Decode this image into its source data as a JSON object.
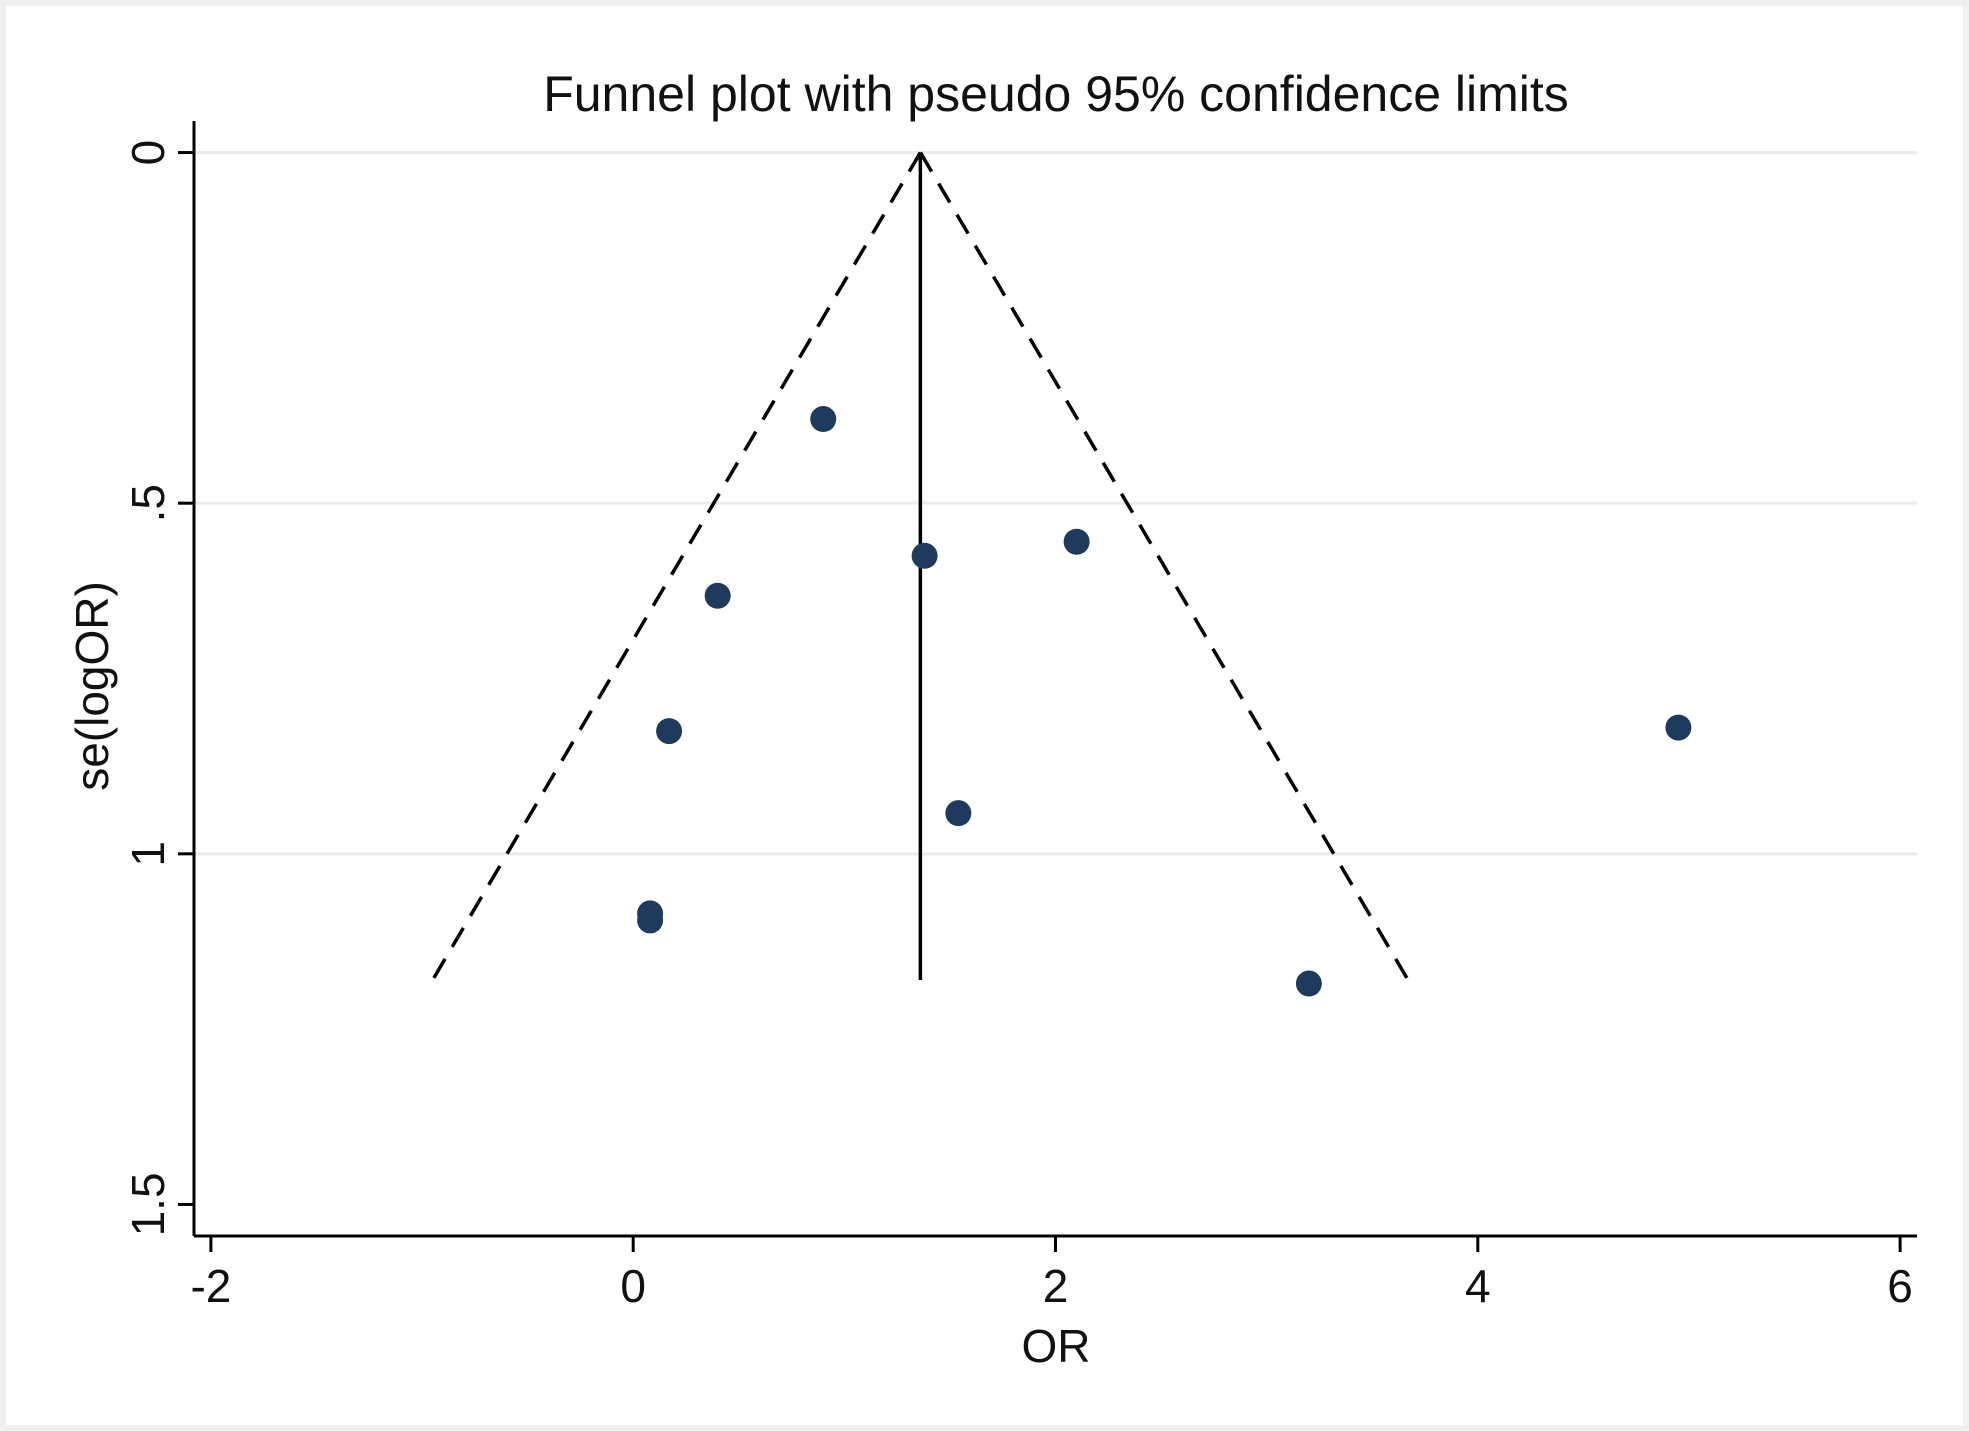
{
  "chart_data": {
    "type": "scatter",
    "title": "Funnel plot with pseudo 95% confidence limits",
    "xlabel": "OR",
    "ylabel": "se(logOR)",
    "xlim": [
      -2.08,
      6.08
    ],
    "ylim": [
      1.545,
      -0.045
    ],
    "y_reversed": true,
    "grid": true,
    "xticks": [
      {
        "value": -2,
        "label": "-2"
      },
      {
        "value": 0,
        "label": "0"
      },
      {
        "value": 2,
        "label": "2"
      },
      {
        "value": 4,
        "label": "4"
      },
      {
        "value": 6,
        "label": "6"
      }
    ],
    "yticks": [
      {
        "value": 0,
        "label": "0"
      },
      {
        "value": 0.5,
        "label": ".5"
      },
      {
        "value": 1,
        "label": "1"
      },
      {
        "value": 1.5,
        "label": "1.5"
      }
    ],
    "pooled_estimate": 1.36,
    "ci_limits": {
      "apex": {
        "x": 1.36,
        "y": 0
      },
      "left_end": {
        "x": -0.95,
        "y": 1.18
      },
      "right_end": {
        "x": 3.67,
        "y": 1.18
      }
    },
    "points": [
      {
        "x": 0.9,
        "y": 0.38
      },
      {
        "x": 1.38,
        "y": 0.575
      },
      {
        "x": 2.1,
        "y": 0.555
      },
      {
        "x": 0.4,
        "y": 0.632
      },
      {
        "x": 0.17,
        "y": 0.825
      },
      {
        "x": 4.95,
        "y": 0.82
      },
      {
        "x": 1.54,
        "y": 0.942
      },
      {
        "x": 0.08,
        "y": 1.085
      },
      {
        "x": 0.08,
        "y": 1.095
      },
      {
        "x": 3.2,
        "y": 1.185
      }
    ],
    "colors": {
      "points": "#1e3a5c",
      "lines": "#000000",
      "grid": "#e9ecee",
      "background": "#ffffff"
    }
  }
}
